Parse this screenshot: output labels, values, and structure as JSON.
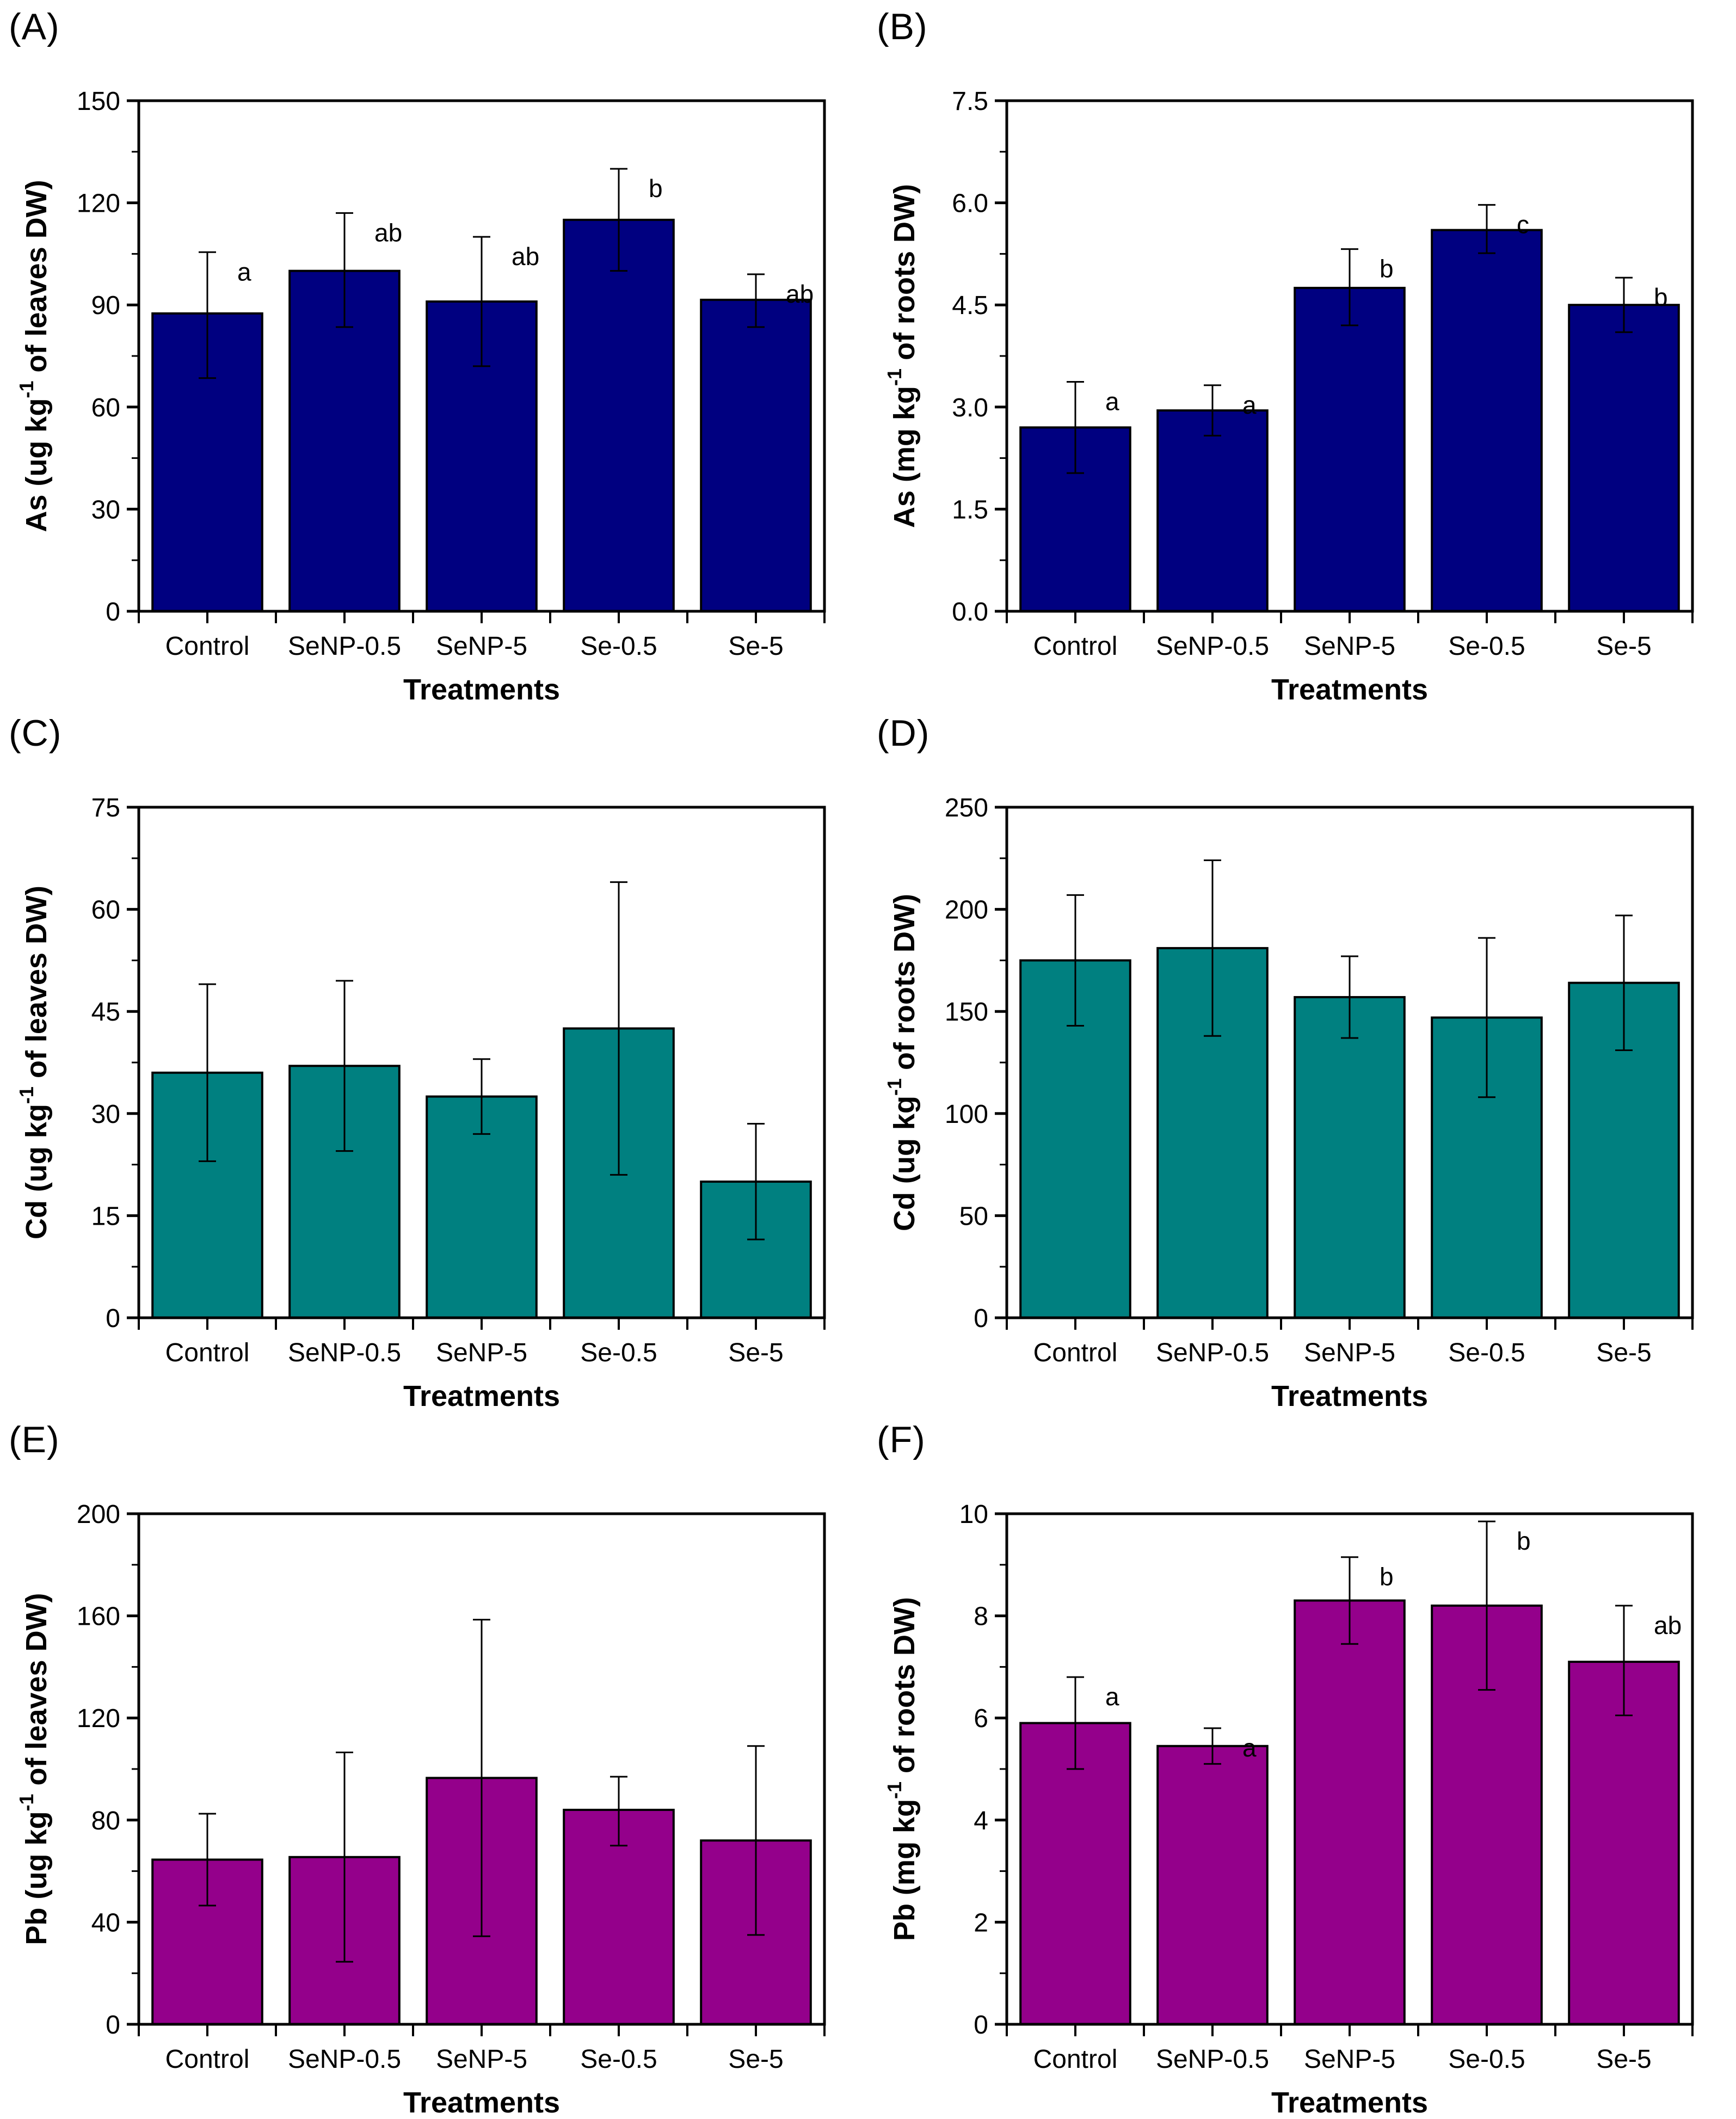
{
  "figure": {
    "panels": [
      "(A)",
      "(B)",
      "(C)",
      "(D)",
      "(E)",
      "(F)"
    ],
    "treatments_label": "Treatments"
  },
  "chart_data": [
    {
      "panel": "(A)",
      "type": "bar",
      "categories": [
        "Control",
        "SeNP-0.5",
        "SeNP-5",
        "Se-0.5",
        "Se-5"
      ],
      "values": [
        87.5,
        100,
        91,
        115,
        91.5
      ],
      "err_up": [
        18,
        17,
        19,
        15,
        7.5
      ],
      "err_down": [
        19,
        16.5,
        19,
        15,
        8
      ],
      "letters": [
        "a",
        "ab",
        "ab",
        "b",
        "ab"
      ],
      "ylabel_pre": "As (ug kg",
      "ylabel_sup": "-1",
      "ylabel_post": " of leaves DW)",
      "xlabel": "Treatments",
      "ylim": [
        0,
        150
      ],
      "ytick_step": 30,
      "y_decimals": 0,
      "grid": false,
      "bar_color": "#000080"
    },
    {
      "panel": "(B)",
      "type": "bar",
      "categories": [
        "Control",
        "SeNP-0.5",
        "SeNP-5",
        "Se-0.5",
        "Se-5"
      ],
      "values": [
        2.7,
        2.95,
        4.75,
        5.6,
        4.5
      ],
      "err_up": [
        0.67,
        0.37,
        0.57,
        0.37,
        0.4
      ],
      "err_down": [
        0.67,
        0.37,
        0.55,
        0.34,
        0.4
      ],
      "letters": [
        "a",
        "a",
        "b",
        "c",
        "b"
      ],
      "ylabel_pre": "As (mg kg",
      "ylabel_sup": "-1",
      "ylabel_post": " of roots DW)",
      "xlabel": "Treatments",
      "ylim": [
        0,
        7.5
      ],
      "ytick_step": 1.5,
      "y_decimals": 1,
      "grid": false,
      "bar_color": "#000080"
    },
    {
      "panel": "(C)",
      "type": "bar",
      "categories": [
        "Control",
        "SeNP-0.5",
        "SeNP-5",
        "Se-0.5",
        "Se-5"
      ],
      "values": [
        36,
        37,
        32.5,
        42.5,
        20
      ],
      "err_up": [
        13,
        12.5,
        5.5,
        21.5,
        8.5
      ],
      "err_down": [
        13,
        12.5,
        5.5,
        21.5,
        8.5
      ],
      "letters": null,
      "ylabel_pre": "Cd (ug kg",
      "ylabel_sup": "-1",
      "ylabel_post": " of leaves DW)",
      "xlabel": "Treatments",
      "ylim": [
        0,
        75
      ],
      "ytick_step": 15,
      "y_decimals": 0,
      "grid": false,
      "bar_color": "#008080"
    },
    {
      "panel": "(D)",
      "type": "bar",
      "categories": [
        "Control",
        "SeNP-0.5",
        "SeNP-5",
        "Se-0.5",
        "Se-5"
      ],
      "values": [
        175,
        181,
        157,
        147,
        164
      ],
      "err_up": [
        32,
        43,
        20,
        39,
        33
      ],
      "err_down": [
        32,
        43,
        20,
        39,
        33
      ],
      "letters": null,
      "ylabel_pre": "Cd (ug kg",
      "ylabel_sup": "-1",
      "ylabel_post": " of roots DW)",
      "xlabel": "Treatments",
      "ylim": [
        0,
        250
      ],
      "ytick_step": 50,
      "y_decimals": 0,
      "grid": false,
      "bar_color": "#008080"
    },
    {
      "panel": "(E)",
      "type": "bar",
      "categories": [
        "Control",
        "SeNP-0.5",
        "SeNP-5",
        "Se-0.5",
        "Se-5"
      ],
      "values": [
        64.5,
        65.5,
        96.5,
        84,
        72
      ],
      "err_up": [
        18,
        41,
        62,
        13,
        37
      ],
      "err_down": [
        18,
        41,
        62,
        14,
        37
      ],
      "letters": null,
      "ylabel_pre": "Pb (ug kg",
      "ylabel_sup": "-1",
      "ylabel_post": " of leaves DW)",
      "xlabel": "Treatments",
      "ylim": [
        0,
        200
      ],
      "ytick_step": 40,
      "y_decimals": 0,
      "grid": false,
      "bar_color": "#94008B"
    },
    {
      "panel": "(F)",
      "type": "bar",
      "categories": [
        "Control",
        "SeNP-0.5",
        "SeNP-5",
        "Se-0.5",
        "Se-5"
      ],
      "values": [
        5.9,
        5.45,
        8.3,
        8.2,
        7.1
      ],
      "err_up": [
        0.9,
        0.35,
        0.85,
        1.65,
        1.1
      ],
      "err_down": [
        0.9,
        0.35,
        0.85,
        1.65,
        1.05
      ],
      "letters": [
        "a",
        "a",
        "b",
        "b",
        "ab"
      ],
      "ylabel_pre": "Pb (mg kg",
      "ylabel_sup": "-1",
      "ylabel_post": " of roots DW)",
      "xlabel": "Treatments",
      "ylim": [
        0,
        10
      ],
      "ytick_step": 2,
      "y_decimals": 0,
      "grid": false,
      "bar_color": "#94008B"
    }
  ]
}
